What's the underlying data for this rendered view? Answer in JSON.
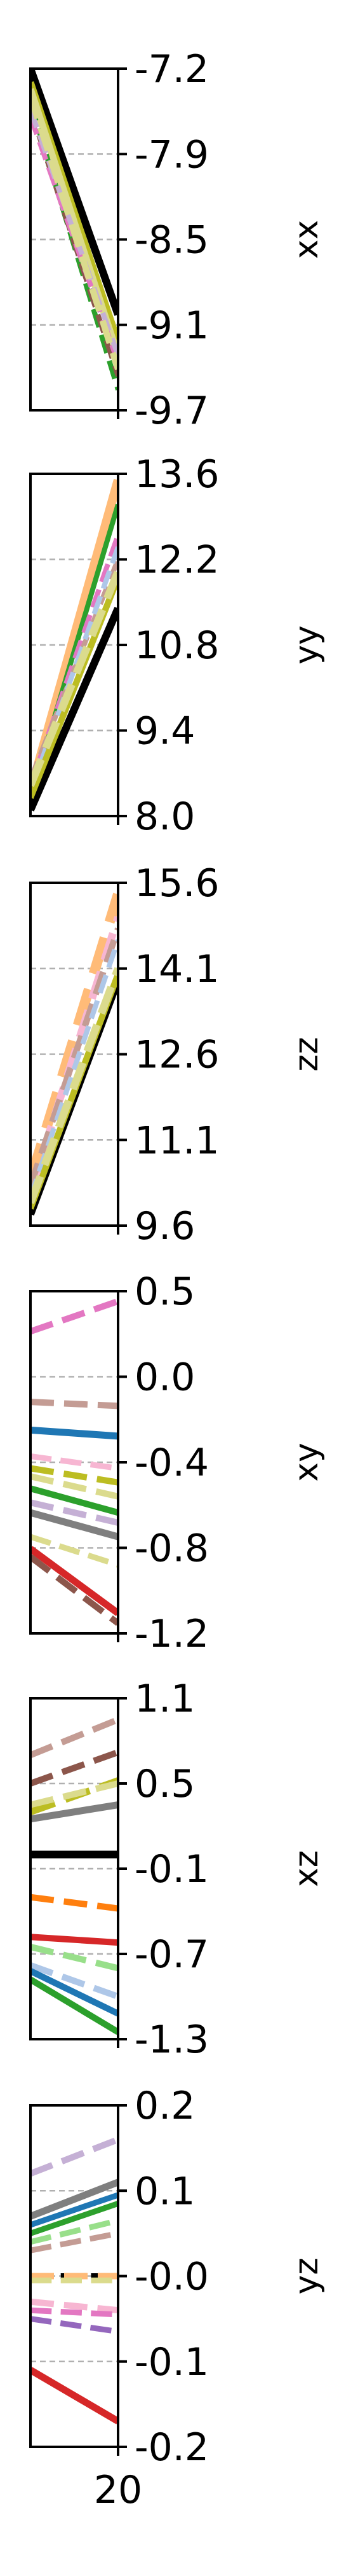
{
  "chart_data": {
    "type": "line",
    "x_ticks": [
      "20"
    ],
    "x_range": [
      19.0,
      20.0
    ],
    "grid": true,
    "panels": [
      {
        "ylabel": "xx",
        "ylim": [
          -9.7,
          -7.2
        ],
        "yticks": [
          "-7.2",
          "-7.9",
          "-8.5",
          "-9.1",
          "-9.7"
        ],
        "series": [
          {
            "color": "#000000",
            "style": "solid",
            "width": 12,
            "values": [
              -7.2,
              -9.0
            ]
          },
          {
            "color": "#bcbd22",
            "style": "solid",
            "width": 11,
            "values": [
              -7.3,
              -9.2
            ]
          },
          {
            "color": "#dbdb8d",
            "style": "solid",
            "width": 11,
            "values": [
              -7.35,
              -9.3
            ]
          },
          {
            "color": "#2ca02c",
            "style": "dashed",
            "width": 8,
            "values": [
              -7.45,
              -9.55
            ]
          },
          {
            "color": "#8c564b",
            "style": "dashed",
            "width": 8,
            "values": [
              -7.5,
              -9.45
            ]
          },
          {
            "color": "#e377c2",
            "style": "dashed",
            "width": 8,
            "values": [
              -7.55,
              -9.35
            ]
          },
          {
            "color": "#c5b0d5",
            "style": "dashed",
            "width": 8,
            "values": [
              -7.5,
              -9.3
            ]
          },
          {
            "color": "#dbdb8d",
            "style": "dashed",
            "width": 10,
            "values": [
              -7.4,
              -9.4
            ]
          }
        ]
      },
      {
        "ylabel": "yy",
        "ylim": [
          8.0,
          13.6
        ],
        "yticks": [
          "13.6",
          "12.2",
          "10.8",
          "9.4",
          "8.0"
        ],
        "series": [
          {
            "color": "#ffbb78",
            "style": "solid",
            "width": 14,
            "values": [
              8.4,
              13.5
            ]
          },
          {
            "color": "#2ca02c",
            "style": "solid",
            "width": 8,
            "values": [
              8.3,
              13.1
            ]
          },
          {
            "color": "#e377c2",
            "style": "dashed",
            "width": 8,
            "values": [
              8.5,
              12.6
            ]
          },
          {
            "color": "#c49c94",
            "style": "dashed",
            "width": 8,
            "values": [
              8.6,
              12.2
            ]
          },
          {
            "color": "#aec7e8",
            "style": "dashed",
            "width": 8,
            "values": [
              8.4,
              12.4
            ]
          },
          {
            "color": "#000000",
            "style": "solid",
            "width": 12,
            "values": [
              8.1,
              11.4
            ]
          },
          {
            "color": "#bcbd22",
            "style": "solid",
            "width": 10,
            "values": [
              8.3,
              11.9
            ]
          },
          {
            "color": "#dbdb8d",
            "style": "dashed",
            "width": 12,
            "values": [
              8.5,
              12.0
            ]
          }
        ]
      },
      {
        "ylabel": "zz",
        "ylim": [
          9.6,
          15.6
        ],
        "yticks": [
          "15.6",
          "14.1",
          "12.6",
          "11.1",
          "9.6"
        ],
        "series": [
          {
            "color": "#ffbb78",
            "style": "dashed",
            "width": 16,
            "values": [
              10.4,
              15.4
            ]
          },
          {
            "color": "#f7b6d2",
            "style": "dashed",
            "width": 12,
            "values": [
              10.2,
              15.0
            ]
          },
          {
            "color": "#c49c94",
            "style": "dashed",
            "width": 10,
            "values": [
              10.3,
              14.8
            ]
          },
          {
            "color": "#aec7e8",
            "style": "dashed",
            "width": 8,
            "values": [
              10.1,
              14.6
            ]
          },
          {
            "color": "#000000",
            "style": "solid",
            "width": 12,
            "values": [
              9.8,
              13.9
            ]
          },
          {
            "color": "#bcbd22",
            "style": "solid",
            "width": 10,
            "values": [
              9.9,
              14.0
            ]
          },
          {
            "color": "#dbdb8d",
            "style": "dashed",
            "width": 12,
            "values": [
              10.0,
              14.1
            ]
          }
        ]
      },
      {
        "ylabel": "xy",
        "ylim": [
          -1.2,
          0.5
        ],
        "yticks": [
          "0.5",
          "0.0",
          "-0.4",
          "-0.8",
          "-1.2"
        ],
        "series": [
          {
            "color": "#e377c2",
            "style": "dashed",
            "width": 10,
            "values": [
              0.3,
              0.45
            ]
          },
          {
            "color": "#c49c94",
            "style": "dashed",
            "width": 10,
            "values": [
              -0.05,
              -0.07
            ]
          },
          {
            "color": "#1f77b4",
            "style": "solid",
            "width": 11,
            "values": [
              -0.19,
              -0.22
            ]
          },
          {
            "color": "#f7b6d2",
            "style": "dashed",
            "width": 9,
            "values": [
              -0.32,
              -0.38
            ]
          },
          {
            "color": "#bcbd22",
            "style": "dashed",
            "width": 10,
            "values": [
              -0.38,
              -0.45
            ]
          },
          {
            "color": "#dbdb8d",
            "style": "dashed",
            "width": 10,
            "values": [
              -0.42,
              -0.52
            ]
          },
          {
            "color": "#2ca02c",
            "style": "solid",
            "width": 10,
            "values": [
              -0.48,
              -0.6
            ]
          },
          {
            "color": "#c5b0d5",
            "style": "dashed",
            "width": 10,
            "values": [
              -0.55,
              -0.65
            ]
          },
          {
            "color": "#7f7f7f",
            "style": "solid",
            "width": 11,
            "values": [
              -0.6,
              -0.72
            ]
          },
          {
            "color": "#dbdb8d",
            "style": "dashed",
            "width": 9,
            "values": [
              -0.72,
              -0.86
            ]
          },
          {
            "color": "#d62728",
            "style": "solid",
            "width": 11,
            "values": [
              -0.78,
              -1.1
            ]
          },
          {
            "color": "#8c564b",
            "style": "dashed",
            "width": 10,
            "values": [
              -0.82,
              -1.15
            ]
          }
        ]
      },
      {
        "ylabel": "xz",
        "ylim": [
          -1.3,
          1.1
        ],
        "yticks": [
          "1.1",
          "0.5",
          "-0.1",
          "-0.7",
          "-1.3"
        ],
        "series": [
          {
            "color": "#c49c94",
            "style": "dashed",
            "width": 10,
            "values": [
              0.7,
              0.95
            ]
          },
          {
            "color": "#8c564b",
            "style": "dashed",
            "width": 10,
            "values": [
              0.5,
              0.72
            ]
          },
          {
            "color": "#bcbd22",
            "style": "dashed",
            "width": 11,
            "values": [
              0.3,
              0.52
            ]
          },
          {
            "color": "#dbdb8d",
            "style": "dashed",
            "width": 10,
            "values": [
              0.35,
              0.5
            ]
          },
          {
            "color": "#7f7f7f",
            "style": "solid",
            "width": 11,
            "values": [
              0.25,
              0.35
            ]
          },
          {
            "color": "#000000",
            "style": "solid",
            "width": 12,
            "values": [
              0.0,
              0.0
            ]
          },
          {
            "color": "#ff7f0e",
            "style": "dashed",
            "width": 10,
            "values": [
              -0.3,
              -0.38
            ]
          },
          {
            "color": "#d62728",
            "style": "solid",
            "width": 10,
            "values": [
              -0.58,
              -0.62
            ]
          },
          {
            "color": "#98df8a",
            "style": "dashed",
            "width": 10,
            "values": [
              -0.65,
              -0.8
            ]
          },
          {
            "color": "#aec7e8",
            "style": "dashed",
            "width": 10,
            "values": [
              -0.78,
              -1.0
            ]
          },
          {
            "color": "#1f77b4",
            "style": "solid",
            "width": 10,
            "values": [
              -0.82,
              -1.12
            ]
          },
          {
            "color": "#2ca02c",
            "style": "solid",
            "width": 10,
            "values": [
              -0.88,
              -1.25
            ]
          }
        ]
      },
      {
        "ylabel": "yz",
        "ylim": [
          -0.2,
          0.2
        ],
        "yticks": [
          "0.2",
          "0.1",
          "-0.0",
          "-0.1",
          "-0.2"
        ],
        "series": [
          {
            "color": "#c5b0d5",
            "style": "dashed",
            "width": 10,
            "values": [
              0.12,
              0.16
            ]
          },
          {
            "color": "#7f7f7f",
            "style": "solid",
            "width": 11,
            "values": [
              0.07,
              0.11
            ]
          },
          {
            "color": "#1f77b4",
            "style": "solid",
            "width": 9,
            "values": [
              0.06,
              0.095
            ]
          },
          {
            "color": "#2ca02c",
            "style": "solid",
            "width": 9,
            "values": [
              0.05,
              0.085
            ]
          },
          {
            "color": "#98df8a",
            "style": "dashed",
            "width": 9,
            "values": [
              0.04,
              0.065
            ]
          },
          {
            "color": "#c49c94",
            "style": "dashed",
            "width": 9,
            "values": [
              0.03,
              0.05
            ]
          },
          {
            "color": "#000000",
            "style": "dashed",
            "width": 9,
            "values": [
              0.0,
              0.0
            ]
          },
          {
            "color": "#ffbb78",
            "style": "dashed",
            "width": 10,
            "values": [
              0.0,
              0.0
            ]
          },
          {
            "color": "#dbdb8d",
            "style": "dashed",
            "width": 9,
            "values": [
              -0.005,
              -0.005
            ]
          },
          {
            "color": "#f7b6d2",
            "style": "dashed",
            "width": 10,
            "values": [
              -0.03,
              -0.04
            ]
          },
          {
            "color": "#e377c2",
            "style": "dashed",
            "width": 9,
            "values": [
              -0.04,
              -0.045
            ]
          },
          {
            "color": "#9467bd",
            "style": "dashed",
            "width": 9,
            "values": [
              -0.05,
              -0.065
            ]
          },
          {
            "color": "#d62728",
            "style": "solid",
            "width": 11,
            "values": [
              -0.11,
              -0.17
            ]
          }
        ]
      }
    ]
  }
}
